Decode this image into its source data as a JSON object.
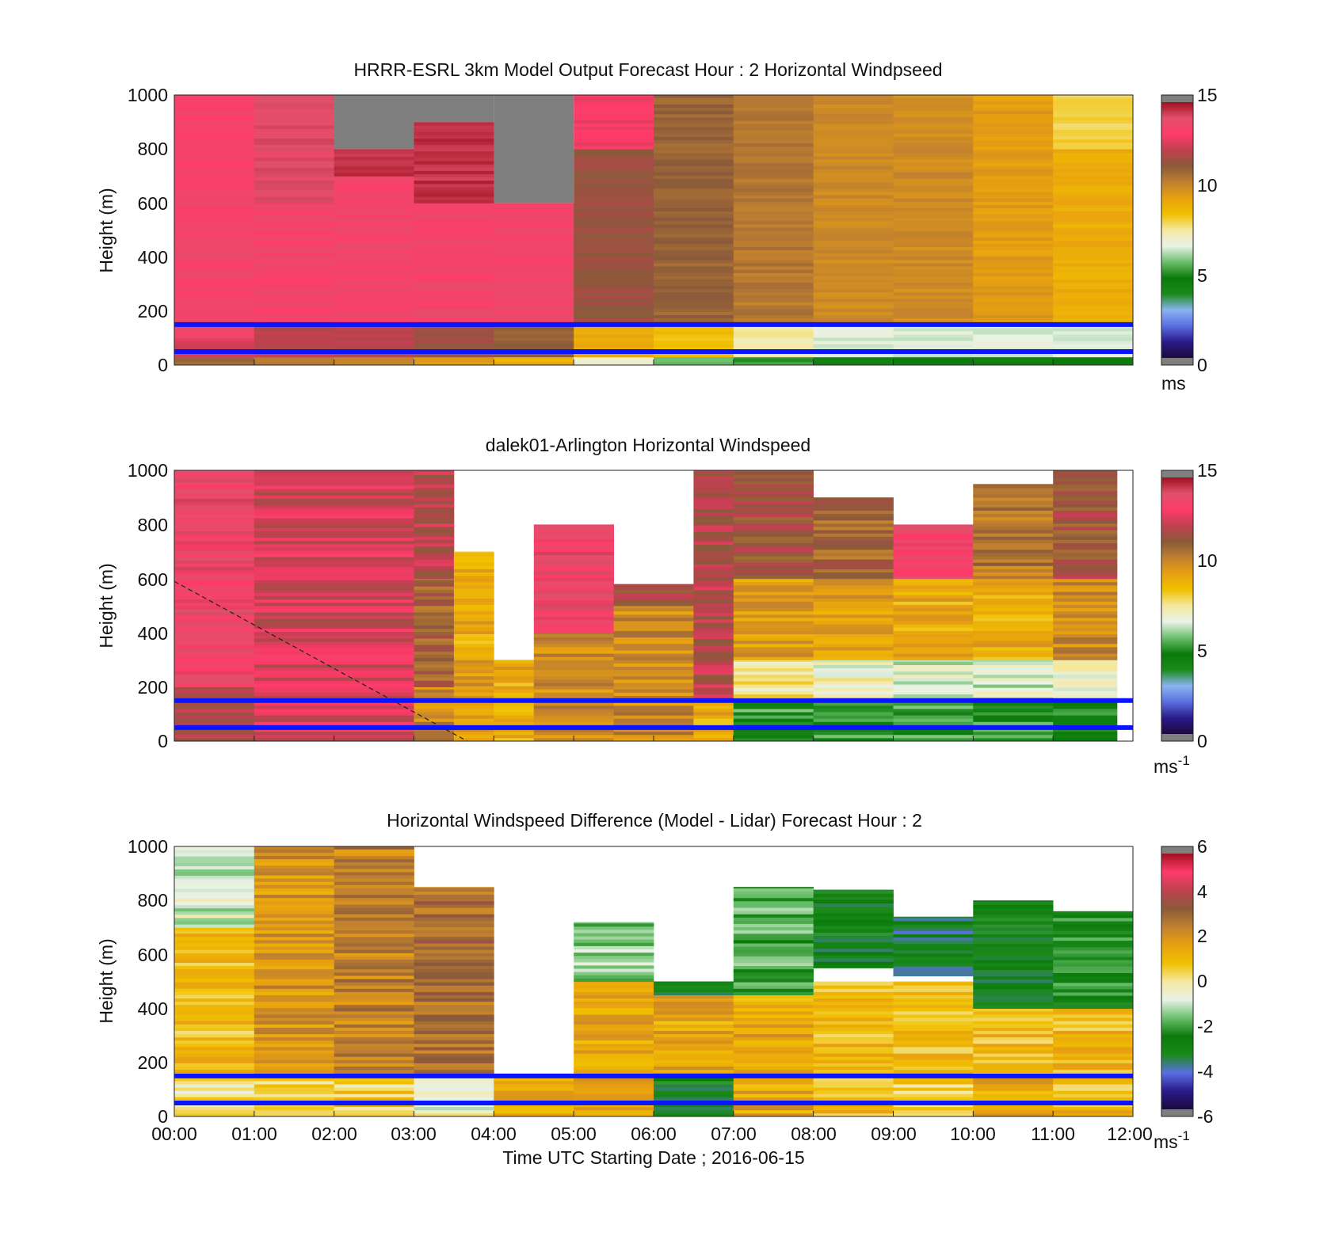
{
  "figure": {
    "xlabel": "Time UTC  Starting Date ; 2016-06-15",
    "x_ticks": [
      "00:00",
      "01:00",
      "02:00",
      "03:00",
      "04:00",
      "05:00",
      "06:00",
      "07:00",
      "08:00",
      "09:00",
      "10:00",
      "11:00",
      "12:00"
    ]
  },
  "colormaps": {
    "speed": [
      "#7f7f7f",
      "#1c0a3c",
      "#2a1a8a",
      "#5a6fe0",
      "#8ab4f0",
      "#1a8a1a",
      "#0a7a0a",
      "#6cbf6c",
      "#e8f2e8",
      "#f5e8a0",
      "#f0c000",
      "#e8a010",
      "#c08030",
      "#8a5a3a",
      "#c04050",
      "#ff3b6a",
      "#e0506a",
      "#a01020",
      "#7f7f7f"
    ],
    "diff": [
      "#7f7f7f",
      "#1c0a3c",
      "#2a1a8a",
      "#5a6fe0",
      "#1a8a1a",
      "#0a7a0a",
      "#6cbf6c",
      "#e8f2e8",
      "#f5e8a0",
      "#f0c000",
      "#e8a010",
      "#c08030",
      "#8a5a3a",
      "#c04050",
      "#ff3b6a",
      "#a01020",
      "#7f7f7f"
    ]
  },
  "chart_data": [
    {
      "type": "heatmap",
      "title": "HRRR-ESRL 3km Model Output   Forecast Hour : 2 Horizontal Windpseed",
      "ylabel": "Height (m)",
      "xlim": [
        "00:00",
        "12:00"
      ],
      "ylim": [
        0,
        1000
      ],
      "y_ticks": [
        "0",
        "200",
        "400",
        "600",
        "800",
        "1000"
      ],
      "colorbar": {
        "range": [
          0,
          15
        ],
        "ticks": [
          "0",
          "5",
          "10",
          "15"
        ],
        "unit": "ms",
        "unit_sup": ""
      },
      "reference_lines_m": [
        50,
        150
      ],
      "missing": [
        {
          "hours": [
            2,
            3
          ],
          "above_m": 800
        },
        {
          "hours": [
            3,
            4
          ],
          "above_m": 900
        },
        {
          "hours": [
            4,
            5
          ],
          "above_m": 600
        }
      ],
      "columns": [
        {
          "hours": [
            0,
            1
          ],
          "bands": [
            [
              0,
              30,
              11
            ],
            [
              30,
              100,
              12.5
            ],
            [
              100,
              1000,
              13.5
            ]
          ]
        },
        {
          "hours": [
            1,
            2
          ],
          "bands": [
            [
              0,
              30,
              10.5
            ],
            [
              30,
              150,
              12
            ],
            [
              150,
              600,
              13.5
            ],
            [
              600,
              1000,
              14
            ]
          ]
        },
        {
          "hours": [
            2,
            3
          ],
          "bands": [
            [
              0,
              30,
              10
            ],
            [
              30,
              150,
              12
            ],
            [
              150,
              700,
              13.5
            ],
            [
              700,
              800,
              14.5
            ]
          ]
        },
        {
          "hours": [
            3,
            4
          ],
          "bands": [
            [
              0,
              30,
              9.5
            ],
            [
              30,
              150,
              11.5
            ],
            [
              150,
              600,
              13.5
            ],
            [
              600,
              900,
              14.5
            ]
          ]
        },
        {
          "hours": [
            4,
            5
          ],
          "bands": [
            [
              0,
              30,
              9
            ],
            [
              30,
              150,
              11
            ],
            [
              150,
              600,
              13.5
            ]
          ]
        },
        {
          "hours": [
            5,
            6
          ],
          "bands": [
            [
              0,
              30,
              7
            ],
            [
              30,
              150,
              9
            ],
            [
              150,
              800,
              11.5
            ],
            [
              800,
              1000,
              13
            ]
          ]
        },
        {
          "hours": [
            6,
            7
          ],
          "bands": [
            [
              0,
              30,
              5.5
            ],
            [
              30,
              150,
              8.5
            ],
            [
              150,
              1000,
              11
            ]
          ]
        },
        {
          "hours": [
            7,
            8
          ],
          "bands": [
            [
              0,
              30,
              5
            ],
            [
              30,
              150,
              7.5
            ],
            [
              150,
              1000,
              10.5
            ]
          ]
        },
        {
          "hours": [
            8,
            9
          ],
          "bands": [
            [
              0,
              30,
              4.5
            ],
            [
              30,
              150,
              6.5
            ],
            [
              150,
              1000,
              10
            ]
          ]
        },
        {
          "hours": [
            9,
            10
          ],
          "bands": [
            [
              0,
              30,
              4.5
            ],
            [
              30,
              150,
              6.5
            ],
            [
              150,
              1000,
              10
            ]
          ]
        },
        {
          "hours": [
            10,
            11
          ],
          "bands": [
            [
              0,
              30,
              4.5
            ],
            [
              30,
              150,
              6.5
            ],
            [
              150,
              1000,
              9.5
            ]
          ]
        },
        {
          "hours": [
            11,
            12
          ],
          "bands": [
            [
              0,
              30,
              4.5
            ],
            [
              30,
              150,
              6.5
            ],
            [
              150,
              800,
              9
            ],
            [
              800,
              1000,
              8
            ]
          ]
        }
      ]
    },
    {
      "type": "heatmap",
      "title": "dalek01-Arlington  Horizontal Windspeed",
      "ylabel": "Height (m)",
      "xlim": [
        "00:00",
        "12:00"
      ],
      "ylim": [
        0,
        1000
      ],
      "y_ticks": [
        "0",
        "200",
        "400",
        "600",
        "800",
        "1000"
      ],
      "colorbar": {
        "range": [
          0,
          15
        ],
        "ticks": [
          "0",
          "5",
          "10",
          "15"
        ],
        "unit": "ms",
        "unit_sup": "-1"
      },
      "reference_lines_m": [
        50,
        150
      ],
      "annotation_line": {
        "from": [
          "00:00",
          590
        ],
        "to": [
          "03:40",
          0
        ],
        "style": "dashed"
      },
      "columns": [
        {
          "hours": [
            0,
            1
          ],
          "bands": [
            [
              0,
              200,
              12
            ],
            [
              200,
              1000,
              13.5
            ]
          ]
        },
        {
          "hours": [
            1,
            3
          ],
          "bands": [
            [
              0,
              200,
              12.5
            ],
            [
              200,
              1000,
              12.5
            ]
          ]
        },
        {
          "hours": [
            3,
            3.5
          ],
          "bands": [
            [
              0,
              200,
              10
            ],
            [
              200,
              600,
              11
            ],
            [
              600,
              1000,
              12
            ]
          ]
        },
        {
          "hours": [
            3.5,
            4
          ],
          "bands": [
            [
              0,
              300,
              9.5
            ],
            [
              300,
              700,
              9
            ]
          ]
        },
        {
          "hours": [
            4,
            4.5
          ],
          "bands": [
            [
              0,
              300,
              9
            ]
          ]
        },
        {
          "hours": [
            4.5,
            5.5
          ],
          "bands": [
            [
              0,
              400,
              10
            ],
            [
              400,
              800,
              13.5
            ]
          ]
        },
        {
          "hours": [
            5.5,
            6.5
          ],
          "bands": [
            [
              0,
              500,
              10
            ],
            [
              500,
              580,
              11.5
            ]
          ]
        },
        {
          "hours": [
            6.5,
            7
          ],
          "bands": [
            [
              0,
              150,
              9
            ],
            [
              150,
              1000,
              12
            ]
          ]
        },
        {
          "hours": [
            7,
            8
          ],
          "bands": [
            [
              0,
              150,
              5
            ],
            [
              150,
              300,
              7.5
            ],
            [
              300,
              600,
              9.5
            ],
            [
              600,
              1000,
              11.5
            ]
          ]
        },
        {
          "hours": [
            8,
            9
          ],
          "bands": [
            [
              0,
              150,
              5
            ],
            [
              150,
              300,
              7
            ],
            [
              300,
              600,
              9.5
            ],
            [
              600,
              900,
              11
            ]
          ]
        },
        {
          "hours": [
            9,
            10
          ],
          "bands": [
            [
              0,
              150,
              5
            ],
            [
              150,
              300,
              6.5
            ],
            [
              300,
              600,
              9
            ],
            [
              600,
              800,
              13.5
            ]
          ]
        },
        {
          "hours": [
            10,
            11
          ],
          "bands": [
            [
              0,
              150,
              5
            ],
            [
              150,
              300,
              6.5
            ],
            [
              300,
              600,
              9
            ],
            [
              600,
              950,
              10.5
            ]
          ]
        },
        {
          "hours": [
            11,
            11.8
          ],
          "bands": [
            [
              0,
              150,
              5
            ],
            [
              150,
              300,
              7
            ],
            [
              300,
              600,
              10
            ],
            [
              600,
              1000,
              11.5
            ]
          ]
        }
      ]
    },
    {
      "type": "heatmap",
      "title": "Horizontal Windspeed Difference (Model - Lidar) Forecast Hour : 2",
      "ylabel": "Height (m)",
      "xlim": [
        "00:00",
        "12:00"
      ],
      "ylim": [
        0,
        1000
      ],
      "y_ticks": [
        "0",
        "200",
        "400",
        "600",
        "800",
        "1000"
      ],
      "colorbar": {
        "range": [
          -6,
          6
        ],
        "ticks": [
          "-6",
          "-4",
          "-2",
          "0",
          "2",
          "4",
          "6"
        ],
        "unit": "ms",
        "unit_sup": "-1"
      },
      "reference_lines_m": [
        50,
        150
      ],
      "columns": [
        {
          "hours": [
            0,
            1
          ],
          "bands": [
            [
              0,
              150,
              0
            ],
            [
              150,
              700,
              1
            ],
            [
              700,
              1000,
              -1
            ]
          ]
        },
        {
          "hours": [
            1,
            2
          ],
          "bands": [
            [
              0,
              150,
              0.5
            ],
            [
              150,
              1000,
              2
            ]
          ]
        },
        {
          "hours": [
            2,
            3
          ],
          "bands": [
            [
              0,
              150,
              0.5
            ],
            [
              150,
              1000,
              2.5
            ]
          ]
        },
        {
          "hours": [
            3,
            4
          ],
          "bands": [
            [
              0,
              150,
              -0.5
            ],
            [
              150,
              850,
              3
            ]
          ]
        },
        {
          "hours": [
            4,
            5
          ],
          "bands": [
            [
              0,
              150,
              1.5
            ]
          ]
        },
        {
          "hours": [
            5,
            6
          ],
          "bands": [
            [
              0,
              150,
              1.5
            ],
            [
              150,
              500,
              1.5
            ],
            [
              500,
              720,
              -1.5
            ]
          ]
        },
        {
          "hours": [
            6,
            7
          ],
          "bands": [
            [
              0,
              150,
              -3
            ],
            [
              150,
              450,
              1.5
            ],
            [
              450,
              500,
              -3
            ]
          ]
        },
        {
          "hours": [
            7,
            8
          ],
          "bands": [
            [
              0,
              150,
              1.5
            ],
            [
              150,
              450,
              1.5
            ],
            [
              450,
              850,
              -2
            ]
          ]
        },
        {
          "hours": [
            8,
            9
          ],
          "bands": [
            [
              0,
              150,
              1
            ],
            [
              150,
              500,
              1
            ],
            [
              550,
              840,
              -3
            ]
          ]
        },
        {
          "hours": [
            9,
            10
          ],
          "bands": [
            [
              0,
              150,
              0.5
            ],
            [
              150,
              500,
              1
            ],
            [
              520,
              740,
              -3.5
            ]
          ]
        },
        {
          "hours": [
            10,
            11
          ],
          "bands": [
            [
              0,
              150,
              1.5
            ],
            [
              150,
              400,
              1
            ],
            [
              400,
              800,
              -3
            ]
          ]
        },
        {
          "hours": [
            11,
            12
          ],
          "bands": [
            [
              0,
              150,
              1
            ],
            [
              150,
              400,
              1
            ],
            [
              400,
              760,
              -2.5
            ]
          ]
        }
      ]
    }
  ]
}
